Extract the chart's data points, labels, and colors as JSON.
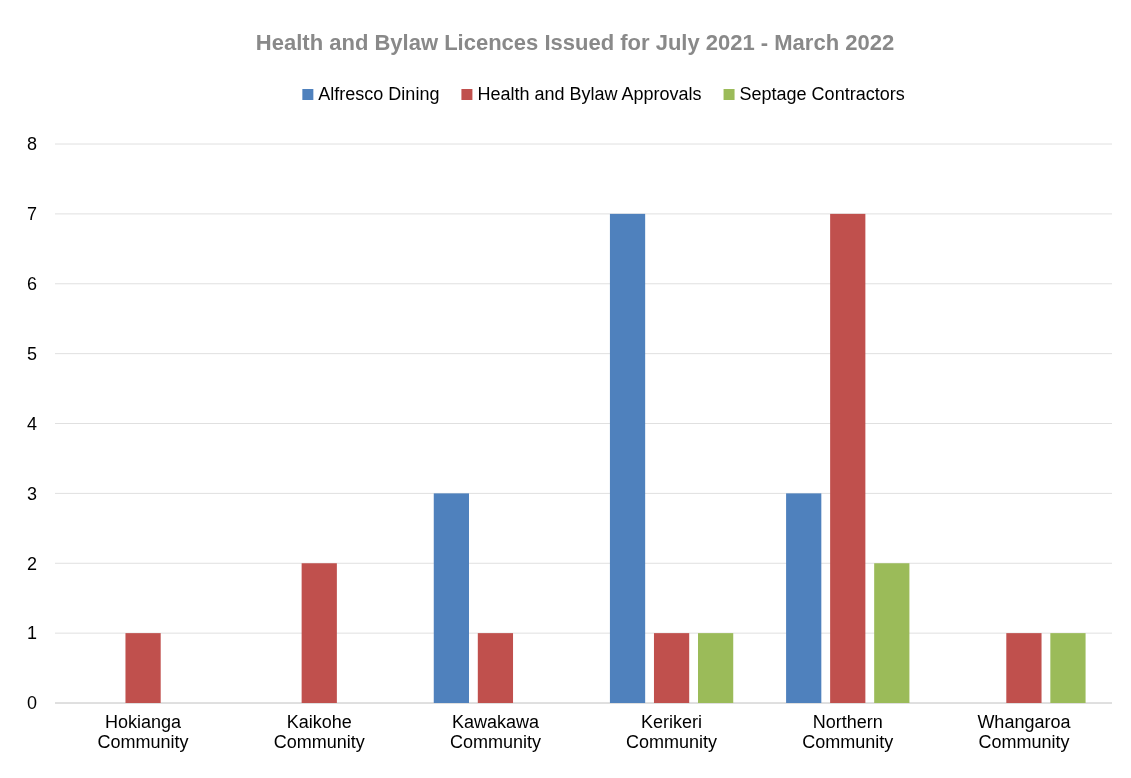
{
  "chart_data": {
    "type": "bar",
    "title": "Health and Bylaw Licences Issued for July 2021 - March 2022",
    "categories": [
      "Hokianga Community",
      "Kaikohe Community",
      "Kawakawa Community",
      "Kerikeri Community",
      "Northern Community",
      "Whangaroa Community"
    ],
    "series": [
      {
        "name": "Alfresco Dining",
        "color": "#4f81bd",
        "values": [
          0,
          0,
          3,
          7,
          3,
          0
        ]
      },
      {
        "name": "Health and Bylaw Approvals",
        "color": "#c0504d",
        "values": [
          1,
          2,
          1,
          1,
          7,
          1
        ]
      },
      {
        "name": "Septage Contractors",
        "color": "#9bbb59",
        "values": [
          0,
          0,
          0,
          1,
          2,
          1
        ]
      }
    ],
    "ylim": [
      0,
      8
    ],
    "yticks": [
      0,
      1,
      2,
      3,
      4,
      5,
      6,
      7,
      8
    ],
    "grid": "y",
    "legend": "top"
  }
}
